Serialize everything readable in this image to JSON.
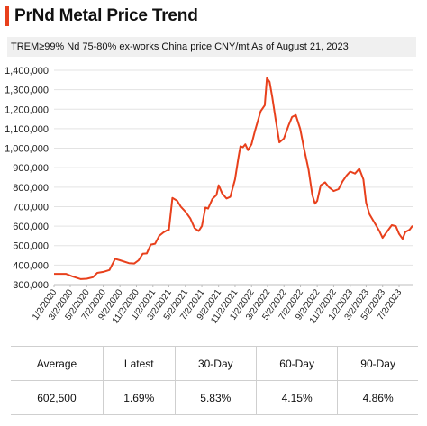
{
  "header": {
    "title": "PrNd Metal Price Trend",
    "subtitle": "TREM≥99% Nd 75-80%   ex-works China price   CNY/mt   As of August 21, 2023",
    "accent_color": "#e8401c"
  },
  "chart_data": {
    "type": "line",
    "title": "",
    "xlabel": "",
    "ylabel": "",
    "ylim": [
      300000,
      1400000
    ],
    "yticks": [
      300000,
      400000,
      500000,
      600000,
      700000,
      800000,
      900000,
      1000000,
      1100000,
      1200000,
      1300000,
      1400000
    ],
    "ytick_labels": [
      "300,000",
      "400,000",
      "500,000",
      "600,000",
      "700,000",
      "800,000",
      "900,000",
      "1,000,000",
      "1,100,000",
      "1,200,000",
      "1,300,000",
      "1,400,000"
    ],
    "xlim": [
      "2020-01-02",
      "2023-08-21"
    ],
    "xticks": [
      "2020-01-02",
      "2020-03-02",
      "2020-05-02",
      "2020-07-02",
      "2020-09-02",
      "2020-11-02",
      "2021-01-02",
      "2021-03-02",
      "2021-05-02",
      "2021-07-02",
      "2021-09-02",
      "2021-11-02",
      "2022-01-02",
      "2022-03-02",
      "2022-05-02",
      "2022-07-02",
      "2022-09-02",
      "2022-11-02",
      "2023-01-02",
      "2023-03-02",
      "2023-05-02",
      "2023-07-02"
    ],
    "xtick_labels": [
      "1/2/2020",
      "3/2/2020",
      "5/2/2020",
      "7/2/2020",
      "9/2/2020",
      "11/2/2020",
      "1/2/2021",
      "3/2/2021",
      "5/2/2021",
      "7/2/2021",
      "9/2/2021",
      "11/2/2021",
      "1/2/2022",
      "3/2/2022",
      "5/2/2022",
      "7/2/2022",
      "9/2/2022",
      "11/2/2022",
      "1/2/2023",
      "3/2/2023",
      "5/2/2023",
      "7/2/2023"
    ],
    "grid": "horizontal",
    "line_color": "#e8401c",
    "series": [
      {
        "values": [
          [
            "2020-01-02",
            355000
          ],
          [
            "2020-02-15",
            355000
          ],
          [
            "2020-03-10",
            342000
          ],
          [
            "2020-04-10",
            328000
          ],
          [
            "2020-05-02",
            330000
          ],
          [
            "2020-05-25",
            338000
          ],
          [
            "2020-06-10",
            360000
          ],
          [
            "2020-07-02",
            365000
          ],
          [
            "2020-07-25",
            375000
          ],
          [
            "2020-08-15",
            432000
          ],
          [
            "2020-09-02",
            425000
          ],
          [
            "2020-10-05",
            410000
          ],
          [
            "2020-10-25",
            408000
          ],
          [
            "2020-11-10",
            425000
          ],
          [
            "2020-11-25",
            458000
          ],
          [
            "2020-12-10",
            460000
          ],
          [
            "2020-12-25",
            505000
          ],
          [
            "2021-01-10",
            510000
          ],
          [
            "2021-01-25",
            550000
          ],
          [
            "2021-02-10",
            568000
          ],
          [
            "2021-02-25",
            580000
          ],
          [
            "2021-03-02",
            580000
          ],
          [
            "2021-03-15",
            745000
          ],
          [
            "2021-04-02",
            730000
          ],
          [
            "2021-04-15",
            700000
          ],
          [
            "2021-05-02",
            675000
          ],
          [
            "2021-05-20",
            640000
          ],
          [
            "2021-06-05",
            590000
          ],
          [
            "2021-06-20",
            575000
          ],
          [
            "2021-07-02",
            600000
          ],
          [
            "2021-07-15",
            695000
          ],
          [
            "2021-07-25",
            690000
          ],
          [
            "2021-08-10",
            740000
          ],
          [
            "2021-08-25",
            760000
          ],
          [
            "2021-09-02",
            810000
          ],
          [
            "2021-09-15",
            768000
          ],
          [
            "2021-10-01",
            742000
          ],
          [
            "2021-10-15",
            750000
          ],
          [
            "2021-11-02",
            840000
          ],
          [
            "2021-11-15",
            955000
          ],
          [
            "2021-11-22",
            1010000
          ],
          [
            "2021-12-01",
            1005000
          ],
          [
            "2021-12-10",
            1020000
          ],
          [
            "2021-12-20",
            990000
          ],
          [
            "2022-01-02",
            1020000
          ],
          [
            "2022-01-15",
            1090000
          ],
          [
            "2022-02-05",
            1190000
          ],
          [
            "2022-02-20",
            1220000
          ],
          [
            "2022-02-28",
            1360000
          ],
          [
            "2022-03-10",
            1340000
          ],
          [
            "2022-03-20",
            1260000
          ],
          [
            "2022-04-01",
            1150000
          ],
          [
            "2022-04-15",
            1030000
          ],
          [
            "2022-05-02",
            1050000
          ],
          [
            "2022-05-20",
            1120000
          ],
          [
            "2022-06-01",
            1160000
          ],
          [
            "2022-06-15",
            1170000
          ],
          [
            "2022-07-01",
            1100000
          ],
          [
            "2022-07-15",
            1000000
          ],
          [
            "2022-08-01",
            890000
          ],
          [
            "2022-08-15",
            760000
          ],
          [
            "2022-08-25",
            715000
          ],
          [
            "2022-09-02",
            730000
          ],
          [
            "2022-09-15",
            810000
          ],
          [
            "2022-10-01",
            825000
          ],
          [
            "2022-10-15",
            800000
          ],
          [
            "2022-11-02",
            780000
          ],
          [
            "2022-11-20",
            790000
          ],
          [
            "2022-12-05",
            830000
          ],
          [
            "2022-12-20",
            860000
          ],
          [
            "2023-01-02",
            880000
          ],
          [
            "2023-01-20",
            870000
          ],
          [
            "2023-02-05",
            895000
          ],
          [
            "2023-02-20",
            840000
          ],
          [
            "2023-03-02",
            720000
          ],
          [
            "2023-03-15",
            660000
          ],
          [
            "2023-04-01",
            620000
          ],
          [
            "2023-04-20",
            575000
          ],
          [
            "2023-05-02",
            540000
          ],
          [
            "2023-05-20",
            575000
          ],
          [
            "2023-06-05",
            605000
          ],
          [
            "2023-06-20",
            600000
          ],
          [
            "2023-07-02",
            560000
          ],
          [
            "2023-07-15",
            535000
          ],
          [
            "2023-07-25",
            570000
          ],
          [
            "2023-08-10",
            582000
          ],
          [
            "2023-08-21",
            602500
          ]
        ]
      }
    ]
  },
  "stats_table": {
    "headers": [
      "Average",
      "Latest",
      "30-Day",
      "60-Day",
      "90-Day"
    ],
    "values": [
      "602,500",
      "1.69%",
      "5.83%",
      "4.15%",
      "4.86%"
    ]
  }
}
